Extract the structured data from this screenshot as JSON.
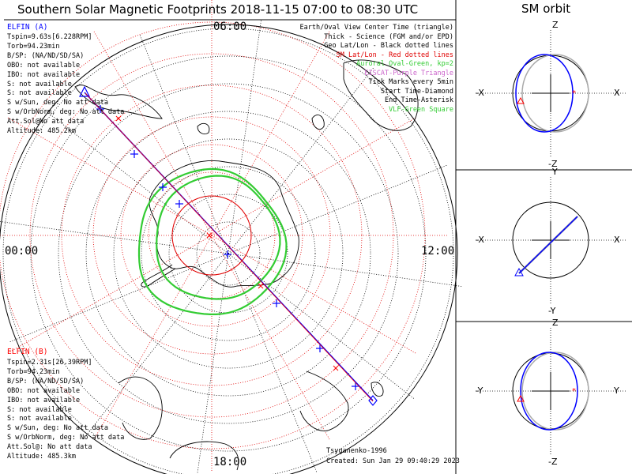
{
  "header": {
    "title": "Southern Solar Magnetic Footprints 2018-11-15 07:00 to 08:30 UTC",
    "orbit_title": "SM orbit"
  },
  "elfin_a": {
    "name": "ELFIN (A)",
    "lines": [
      "Tspin=9.63s[6.228RPM]",
      "Torb=94.23min",
      "B/SP: (NA/ND/SD/SA)",
      "OBO: not available",
      "IBO: not available",
      "S: not available",
      "S: not available",
      "S w/Sun, deg: No att data",
      "S w/OrbNorm, deg: No att data",
      "Att.Sol@No att data",
      "Altitude: 485.2km"
    ]
  },
  "elfin_b": {
    "name": "ELFIN (B)",
    "lines": [
      "Tspin=2.31s[26.39RPM]",
      "Torb=94.23min",
      "B/SP: (NA/ND/SD/SA)",
      "OBO: not available",
      "IBO: not available",
      "S: not available",
      "S: not available",
      "S w/Sun, deg: No att data",
      "S w/OrbNorm, deg: No att data",
      "Att.Sol@: No att data",
      "Altitude: 485.3km"
    ]
  },
  "legend": [
    {
      "text": "Earth/Oval View Center Time (triangle)",
      "color": "#000000"
    },
    {
      "text": "Thick - Science (FGM and/or EPD)",
      "color": "#000000"
    },
    {
      "text": "Geo Lat/Lon - Black dotted lines",
      "color": "#000000"
    },
    {
      "text": "SM Lat/Lon - Red dotted lines",
      "color": "#e00000"
    },
    {
      "text": "Auroral Oval-Green, kp=2",
      "color": "#33cc33"
    },
    {
      "text": "EISCAT-Purple Triangle",
      "color": "#cc66cc"
    },
    {
      "text": "Tick Marks every 5min",
      "color": "#000000"
    },
    {
      "text": "Start Time-Diamond",
      "color": "#000000"
    },
    {
      "text": "End Time-Asterisk",
      "color": "#000000"
    },
    {
      "text": "VLF-Green Square",
      "color": "#33cc33"
    }
  ],
  "clock": {
    "top": "06:00",
    "left": "00:00",
    "right": "12:00",
    "bottom": "18:00"
  },
  "footer": {
    "model": "Tsyganenko-1996",
    "created": "Created: Sun Jan 29 09:40:29 2023"
  },
  "orbit_panels": [
    {
      "top": "Z",
      "bottom": "-Z",
      "left": "-X",
      "right": "X"
    },
    {
      "top": "Y",
      "bottom": "-Y",
      "left": "-X",
      "right": "X"
    },
    {
      "top": "Z",
      "bottom": "-Z",
      "left": "-Y",
      "right": "Y"
    }
  ],
  "colors": {
    "elfin_a": "#0000ff",
    "elfin_b": "#ff0000",
    "oval": "#33cc33",
    "sm_grid": "#e00000",
    "geo_grid": "#000000"
  }
}
